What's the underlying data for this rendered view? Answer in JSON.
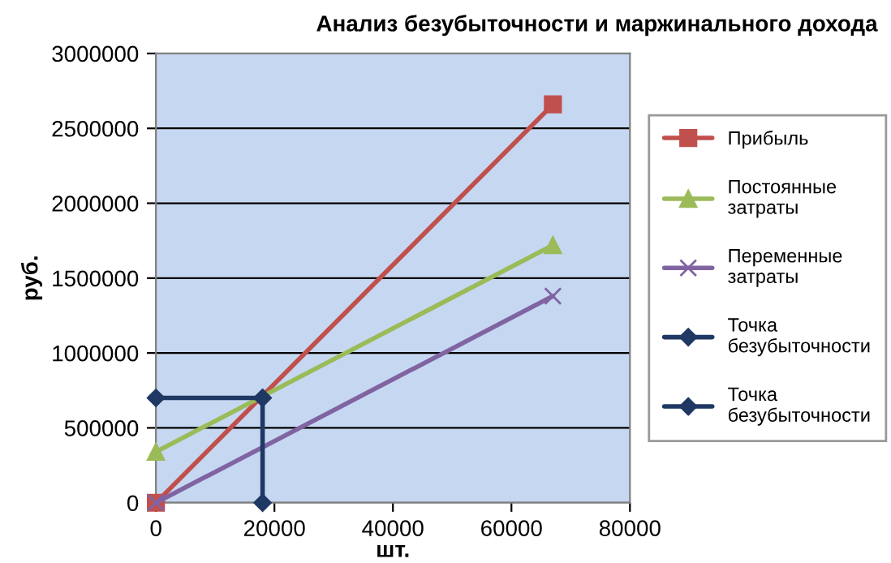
{
  "chart_data": {
    "type": "line",
    "title": "Анализ безубыточности и маржинального дохода",
    "xlabel": "шт.",
    "ylabel": "руб.",
    "xlim": [
      0,
      80000
    ],
    "xticks": [
      0,
      20000,
      40000,
      60000,
      80000
    ],
    "ylim": [
      0,
      3000000
    ],
    "yticks": [
      0,
      500000,
      1000000,
      1500000,
      2000000,
      2500000,
      3000000
    ],
    "grid": "y",
    "legend": "right",
    "line_style": "solid",
    "series": [
      {
        "name": "Прибыль",
        "color": "#c0504d",
        "marker": "square",
        "x": [
          0,
          67000
        ],
        "values": [
          0,
          2660000
        ]
      },
      {
        "name": "Постоянные затраты",
        "color": "#9bbb59",
        "marker": "triangle",
        "x": [
          0,
          67000
        ],
        "values": [
          340000,
          1720000
        ]
      },
      {
        "name": "Переменные затраты",
        "color": "#8064a2",
        "marker": "cross",
        "x": [
          0,
          67000
        ],
        "values": [
          0,
          1380000
        ]
      },
      {
        "name": "Точка безубыточности",
        "color": "#1f3864",
        "marker": "diamond",
        "x": [
          0,
          18000
        ],
        "values": [
          700000,
          700000
        ]
      },
      {
        "name": "Точка безубыточности",
        "color": "#1f3864",
        "marker": "diamond",
        "x": [
          18000,
          18000
        ],
        "values": [
          700000,
          0
        ]
      }
    ]
  }
}
